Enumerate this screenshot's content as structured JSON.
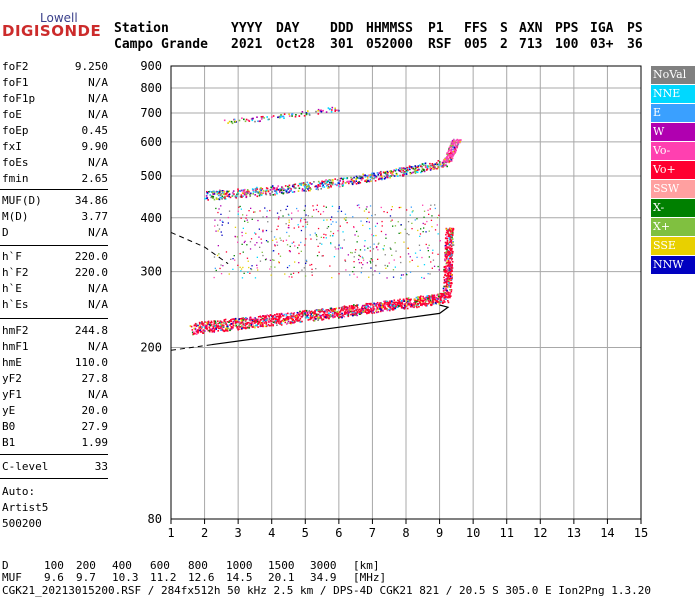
{
  "logo": {
    "line1": "Lowell",
    "line2": "DIGISONDE"
  },
  "header": {
    "columns": [
      {
        "h": "Station",
        "v": "Campo Grande"
      },
      {
        "h": "YYYY",
        "v": "2021"
      },
      {
        "h": "DAY",
        "v": "Oct28"
      },
      {
        "h": "DDD",
        "v": "301"
      },
      {
        "h": "HHMMSS",
        "v": "052000"
      },
      {
        "h": "P1",
        "v": "RSF"
      },
      {
        "h": "FFS",
        "v": "005"
      },
      {
        "h": "S",
        "v": "2"
      },
      {
        "h": "AXN",
        "v": "713"
      },
      {
        "h": "PPS",
        "v": "100"
      },
      {
        "h": "IGA",
        "v": "03+"
      },
      {
        "h": "PS",
        "v": "36"
      }
    ]
  },
  "sidebar": {
    "group1": [
      {
        "label": "foF2",
        "value": "9.250"
      },
      {
        "label": "foF1",
        "value": "N/A"
      },
      {
        "label": "foF1p",
        "value": "N/A"
      },
      {
        "label": "foE",
        "value": "N/A"
      },
      {
        "label": "foEp",
        "value": "0.45"
      },
      {
        "label": "fxI",
        "value": "9.90"
      },
      {
        "label": "foEs",
        "value": "N/A"
      },
      {
        "label": "fmin",
        "value": "2.65"
      }
    ],
    "group2": [
      {
        "label": "MUF(D)",
        "value": "34.86"
      },
      {
        "label": "M(D)",
        "value": "3.77"
      },
      {
        "label": "D",
        "value": "N/A"
      }
    ],
    "group3": [
      {
        "label": "h`F",
        "value": "220.0"
      },
      {
        "label": "h`F2",
        "value": "220.0"
      },
      {
        "label": "h`E",
        "value": "N/A"
      },
      {
        "label": "h`Es",
        "value": "N/A"
      }
    ],
    "group4": [
      {
        "label": "hmF2",
        "value": "244.8"
      },
      {
        "label": "hmF1",
        "value": "N/A"
      },
      {
        "label": "hmE",
        "value": "110.0"
      },
      {
        "label": "yF2",
        "value": "27.8"
      },
      {
        "label": "yF1",
        "value": "N/A"
      },
      {
        "label": "yE",
        "value": "20.0"
      },
      {
        "label": "B0",
        "value": "27.9"
      },
      {
        "label": "B1",
        "value": "1.99"
      }
    ],
    "group5": [
      {
        "label": "C-level",
        "value": "33"
      }
    ],
    "auto_lines": [
      "Auto:",
      "Artist5",
      "500200"
    ]
  },
  "legend": [
    {
      "label": "NoVal",
      "color": "#808080"
    },
    {
      "label": "NNE",
      "color": "#00d8ff"
    },
    {
      "label": "E",
      "color": "#3aa0ff"
    },
    {
      "label": "W",
      "color": "#b000b0"
    },
    {
      "label": "Vo-",
      "color": "#ff40b0"
    },
    {
      "label": "Vo+",
      "color": "#ff0030"
    },
    {
      "label": "SSW",
      "color": "#ffa0a0"
    },
    {
      "label": "X-",
      "color": "#008000"
    },
    {
      "label": "X+",
      "color": "#80c040"
    },
    {
      "label": "SSE",
      "color": "#e8d000"
    },
    {
      "label": "NNW",
      "color": "#0000c0"
    }
  ],
  "chart_data": {
    "type": "scatter",
    "xlim": [
      1,
      15
    ],
    "ylim": [
      80,
      900
    ],
    "y_scale": "log",
    "grid": true,
    "x_ticks": [
      1,
      2,
      3,
      4,
      5,
      6,
      7,
      8,
      9,
      10,
      11,
      12,
      13,
      14,
      15
    ],
    "y_ticks": [
      80,
      200,
      300,
      400,
      500,
      600,
      700,
      800,
      900
    ],
    "traces": [
      {
        "name": "F2 trace",
        "color_key": "Vo+",
        "start": [
          1.6,
          222
        ],
        "ctrl": [
          6.0,
          240
        ],
        "end": [
          9.2,
          262
        ],
        "rise_to": [
          9.3,
          380
        ]
      },
      {
        "name": "F2 second hop",
        "color_key": "Vo-",
        "start": [
          2.0,
          452
        ],
        "ctrl": [
          6.0,
          470
        ],
        "end": [
          9.2,
          540
        ],
        "rise_to": [
          9.5,
          610
        ]
      },
      {
        "name": "third hop",
        "color_key": "SSE",
        "start": [
          2.6,
          670
        ],
        "ctrl": [
          4.5,
          690
        ],
        "end": [
          6.0,
          720
        ],
        "rise_to": [
          6.0,
          720
        ]
      }
    ],
    "profile_line": {
      "points": [
        [
          2.2,
          203
        ],
        [
          9.0,
          240
        ],
        [
          9.25,
          248
        ],
        [
          9.0,
          251
        ]
      ]
    },
    "dashed_line": {
      "points": [
        [
          1.0,
          370
        ],
        [
          2.0,
          342
        ],
        [
          2.7,
          313
        ],
        [
          1.0,
          197
        ],
        [
          2.2,
          203
        ]
      ]
    }
  },
  "bottom": {
    "d_row": {
      "label": "D",
      "values": [
        "100",
        "200",
        "400",
        "600",
        "800",
        "1000",
        "1500",
        "3000"
      ],
      "unit": "[km]"
    },
    "muf_row": {
      "label": "MUF",
      "values": [
        "9.6",
        "9.7",
        "10.3",
        "11.2",
        "12.6",
        "14.5",
        "20.1",
        "34.9"
      ],
      "unit": "[MHz]"
    },
    "footer": "CGK21_20213015200.RSF / 284fx512h 50 kHz 2.5 km / DPS-4D CGK21 821 / 20.5 S 305.0 E Ion2Png 1.3.20"
  }
}
